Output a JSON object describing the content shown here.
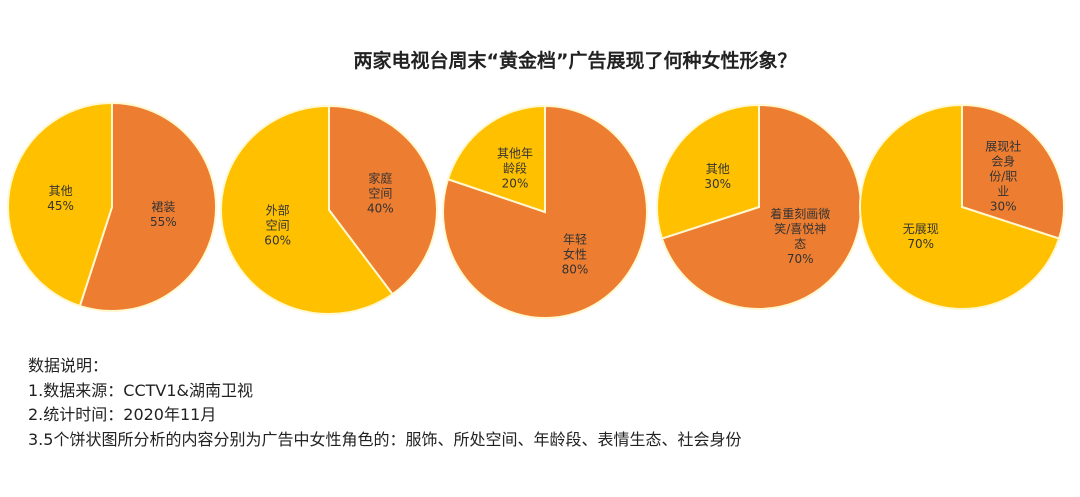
{
  "chart_data": [
    {
      "type": "pie",
      "slices": [
        {
          "label": "裙装",
          "value": 55,
          "display": "55%",
          "color": "#ED7D31"
        },
        {
          "label": "其他",
          "value": 45,
          "display": "45%",
          "color": "#FFC000"
        }
      ]
    },
    {
      "type": "pie",
      "slices": [
        {
          "label": "家庭空间",
          "value": 40,
          "display": "40%",
          "color": "#ED7D31"
        },
        {
          "label": "外部空间",
          "value": 60,
          "display": "60%",
          "color": "#FFC000"
        }
      ]
    },
    {
      "type": "pie",
      "slices": [
        {
          "label": "年轻女性",
          "value": 80,
          "display": "80%",
          "color": "#ED7D31"
        },
        {
          "label": "其他年龄段",
          "value": 20,
          "display": "20%",
          "color": "#FFC000"
        }
      ]
    },
    {
      "type": "pie",
      "slices": [
        {
          "label": "着重刻画微笑/喜悦神态",
          "value": 70,
          "display": "70%",
          "color": "#ED7D31"
        },
        {
          "label": "其他",
          "value": 30,
          "display": "30%",
          "color": "#FFC000"
        }
      ]
    },
    {
      "type": "pie",
      "slices": [
        {
          "label": "展现社会身份/职业",
          "value": 30,
          "display": "30%",
          "color": "#ED7D31"
        },
        {
          "label": "无展现",
          "value": 70,
          "display": "70%",
          "color": "#FFC000"
        }
      ]
    }
  ],
  "title": "两家电视台周末“黄金档”广告展现了何种女性形象？",
  "notes": [
    "数据说明：",
    "1.数据来源：CCTV1&湖南卫视",
    "2.统计时间：2020年11月",
    "3.5个饼状图所分析的内容分别为广告中女性角色的：服饰、所处空间、年龄段、表情生态、社会身份"
  ]
}
